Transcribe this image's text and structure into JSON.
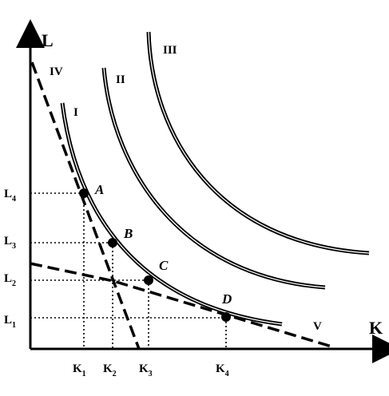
{
  "axes": {
    "y_label": "L",
    "x_label": "K",
    "y_ticks": [
      {
        "main": "L",
        "sub": "4"
      },
      {
        "main": "L",
        "sub": "3"
      },
      {
        "main": "L",
        "sub": "2"
      },
      {
        "main": "L",
        "sub": "1"
      }
    ],
    "x_ticks": [
      {
        "main": "K",
        "sub": "1"
      },
      {
        "main": "K",
        "sub": "2"
      },
      {
        "main": "K",
        "sub": "3"
      },
      {
        "main": "K",
        "sub": "4"
      }
    ]
  },
  "isoquants": [
    {
      "id": "I",
      "label": "I"
    },
    {
      "id": "II",
      "label": "II"
    },
    {
      "id": "III",
      "label": "III"
    }
  ],
  "isocost_lines": [
    {
      "id": "IV",
      "label": "IV"
    },
    {
      "id": "V",
      "label": "V"
    }
  ],
  "points": [
    {
      "id": "A",
      "label": "A"
    },
    {
      "id": "B",
      "label": "B"
    },
    {
      "id": "C",
      "label": "C"
    },
    {
      "id": "D",
      "label": "D"
    }
  ],
  "colors": {
    "ink": "#000000",
    "background": "#ffffff"
  }
}
